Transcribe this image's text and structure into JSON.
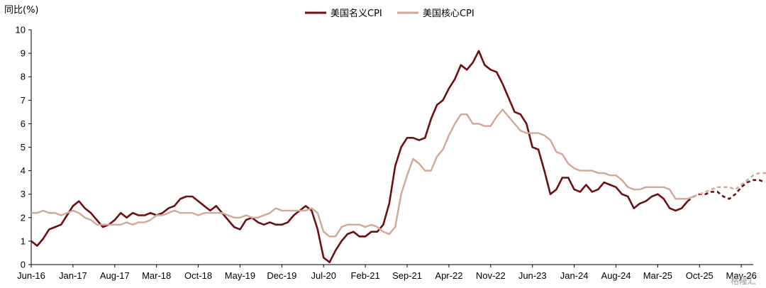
{
  "chart_data": {
    "type": "line",
    "ylabel": "同比(%)",
    "ylim": [
      0,
      10
    ],
    "yticks": [
      "0",
      "1",
      "2",
      "3",
      "4",
      "5",
      "6",
      "7",
      "8",
      "9",
      "10"
    ],
    "xticks": [
      "Jun-16",
      "Jan-17",
      "Aug-17",
      "Mar-18",
      "Oct-18",
      "May-19",
      "Dec-19",
      "Jul-20",
      "Feb-21",
      "Sep-21",
      "Apr-22",
      "Nov-22",
      "Jun-23",
      "Jan-24",
      "Aug-24",
      "Mar-25",
      "Oct-25",
      "May-26"
    ],
    "x_start": "2016-06",
    "x_end": "2026-07",
    "legend_position": "top-center",
    "grid": false,
    "series": [
      {
        "name": "美国名义CPI",
        "color": "#6e0e13",
        "values": [
          1.0,
          0.8,
          1.1,
          1.5,
          1.6,
          1.7,
          2.1,
          2.5,
          2.7,
          2.4,
          2.2,
          1.9,
          1.6,
          1.7,
          1.9,
          2.2,
          2.0,
          2.2,
          2.1,
          2.1,
          2.2,
          2.1,
          2.2,
          2.4,
          2.5,
          2.8,
          2.9,
          2.9,
          2.7,
          2.5,
          2.3,
          2.5,
          2.2,
          1.9,
          1.6,
          1.5,
          1.9,
          2.0,
          1.8,
          1.7,
          1.8,
          1.7,
          1.7,
          1.8,
          2.1,
          2.3,
          2.5,
          2.3,
          1.5,
          0.3,
          0.1,
          0.6,
          1.0,
          1.3,
          1.4,
          1.2,
          1.2,
          1.4,
          1.4,
          1.7,
          2.6,
          4.2,
          5.0,
          5.4,
          5.4,
          5.3,
          5.4,
          6.2,
          6.8,
          7.0,
          7.5,
          7.9,
          8.5,
          8.3,
          8.6,
          9.1,
          8.5,
          8.3,
          8.2,
          7.7,
          7.1,
          6.5,
          6.4,
          6.0,
          5.0,
          4.9,
          4.0,
          3.0,
          3.2,
          3.7,
          3.7,
          3.2,
          3.1,
          3.4,
          3.1,
          3.2,
          3.5,
          3.4,
          3.3,
          3.0,
          2.9,
          2.4,
          2.6,
          2.7,
          2.9,
          3.0,
          2.8,
          2.4,
          2.3,
          2.4,
          2.7
        ],
        "forecast": [
          2.7,
          2.9,
          3.0,
          3.0,
          3.1,
          3.1,
          2.9,
          2.8,
          3.0,
          3.3,
          3.5,
          3.6,
          3.6,
          3.5
        ]
      },
      {
        "name": "美国核心CPI",
        "color": "#d2a894",
        "values": [
          2.2,
          2.2,
          2.3,
          2.2,
          2.2,
          2.1,
          2.2,
          2.3,
          2.2,
          2.0,
          1.9,
          1.7,
          1.7,
          1.7,
          1.7,
          1.7,
          1.8,
          1.7,
          1.8,
          1.8,
          1.9,
          2.1,
          2.1,
          2.2,
          2.3,
          2.2,
          2.2,
          2.2,
          2.1,
          2.2,
          2.2,
          2.2,
          2.2,
          2.1,
          2.0,
          2.0,
          2.1,
          2.0,
          2.0,
          2.1,
          2.2,
          2.4,
          2.3,
          2.3,
          2.3,
          2.3,
          2.3,
          2.4,
          2.2,
          1.4,
          1.2,
          1.2,
          1.6,
          1.7,
          1.7,
          1.7,
          1.6,
          1.7,
          1.6,
          1.4,
          1.3,
          1.6,
          3.0,
          3.8,
          4.5,
          4.3,
          4.0,
          4.0,
          4.6,
          4.9,
          5.5,
          6.0,
          6.4,
          6.4,
          6.0,
          6.0,
          5.9,
          5.9,
          6.3,
          6.6,
          6.3,
          6.0,
          5.7,
          5.6,
          5.6,
          5.6,
          5.5,
          5.3,
          4.8,
          4.7,
          4.3,
          4.1,
          4.0,
          4.0,
          4.0,
          3.9,
          3.9,
          3.8,
          3.8,
          3.6,
          3.3,
          3.2,
          3.2,
          3.3,
          3.3,
          3.3,
          3.3,
          3.2,
          2.8,
          2.8,
          2.8,
          2.9
        ],
        "forecast": [
          2.9,
          3.0,
          3.1,
          3.2,
          3.3,
          3.3,
          3.3,
          3.2,
          3.4,
          3.6,
          3.8,
          3.9,
          3.9,
          3.9
        ]
      }
    ]
  },
  "watermark": "格隆汇"
}
